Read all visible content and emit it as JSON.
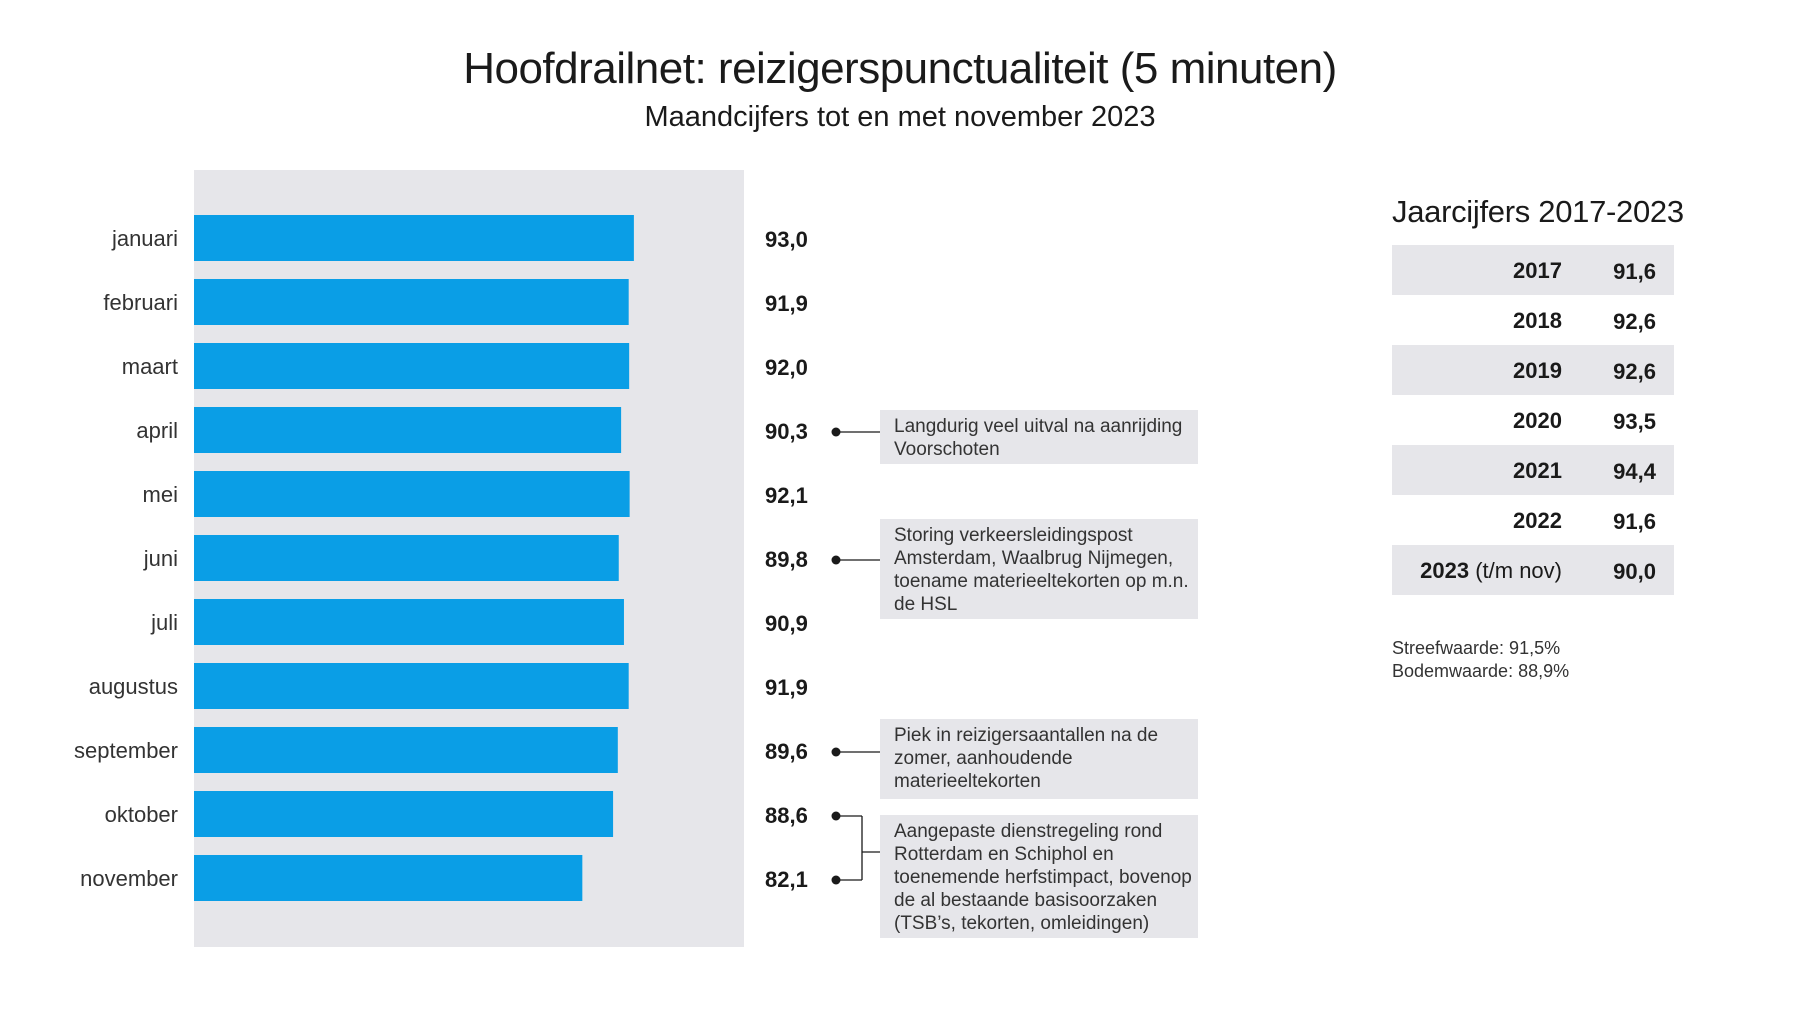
{
  "title": "Hoofdrailnet: reizigerspunctualiteit (5 minuten)",
  "subtitle": "Maandcijfers tot en met november 2023",
  "colors": {
    "bar": "#0a9ee6",
    "panel": "#e6e6ea",
    "text": "#1a1a1a"
  },
  "chart_data": {
    "type": "bar",
    "orientation": "horizontal",
    "title": "Hoofdrailnet: reizigerspunctualiteit (5 minuten)",
    "subtitle": "Maandcijfers tot en met november 2023",
    "categories": [
      "januari",
      "februari",
      "maart",
      "april",
      "mei",
      "juni",
      "juli",
      "augustus",
      "september",
      "oktober",
      "november"
    ],
    "values": [
      93.0,
      91.9,
      92.0,
      90.3,
      92.1,
      89.8,
      90.9,
      91.9,
      89.6,
      88.6,
      82.1
    ],
    "value_labels": [
      "93,0",
      "91,9",
      "92,0",
      "90,3",
      "92,1",
      "89,8",
      "90,9",
      "91,9",
      "89,6",
      "88,6",
      "82,1"
    ],
    "xlim": [
      0,
      100
    ],
    "grid": false,
    "legend": "none"
  },
  "annotations": [
    {
      "text": "Langdurig veel uitval na aanrijding Voorschoten",
      "months": [
        3
      ]
    },
    {
      "text": "Storing verkeersleidingspost Amsterdam, Waalbrug Nijmegen, toename materieeltekorten op m.n. de HSL",
      "months": [
        5
      ]
    },
    {
      "text": "Piek in reizigersaantallen na de zomer, aanhoudende materieeltekorten",
      "months": [
        8
      ]
    },
    {
      "text": "Aangepaste dienstregeling rond Rotterdam en Schiphol en toenemende herfstimpact, bovenop de al bestaande basisoorzaken (TSB’s, tekorten, omleidingen)",
      "months": [
        9,
        10
      ]
    }
  ],
  "yearly": {
    "title": "Jaarcijfers 2017-2023",
    "rows": [
      {
        "year": "2017",
        "suffix": "",
        "value": "91,6"
      },
      {
        "year": "2018",
        "suffix": "",
        "value": "92,6"
      },
      {
        "year": "2019",
        "suffix": "",
        "value": "92,6"
      },
      {
        "year": "2020",
        "suffix": "",
        "value": "93,5"
      },
      {
        "year": "2021",
        "suffix": "",
        "value": "94,4"
      },
      {
        "year": "2022",
        "suffix": "",
        "value": "91,6"
      },
      {
        "year": "2023",
        "suffix": " (t/m nov)",
        "value": "90,0"
      }
    ]
  },
  "notes": {
    "streefwaarde": "Streefwaarde: 91,5%",
    "bodemwaarde": "Bodemwaarde: 88,9%"
  }
}
